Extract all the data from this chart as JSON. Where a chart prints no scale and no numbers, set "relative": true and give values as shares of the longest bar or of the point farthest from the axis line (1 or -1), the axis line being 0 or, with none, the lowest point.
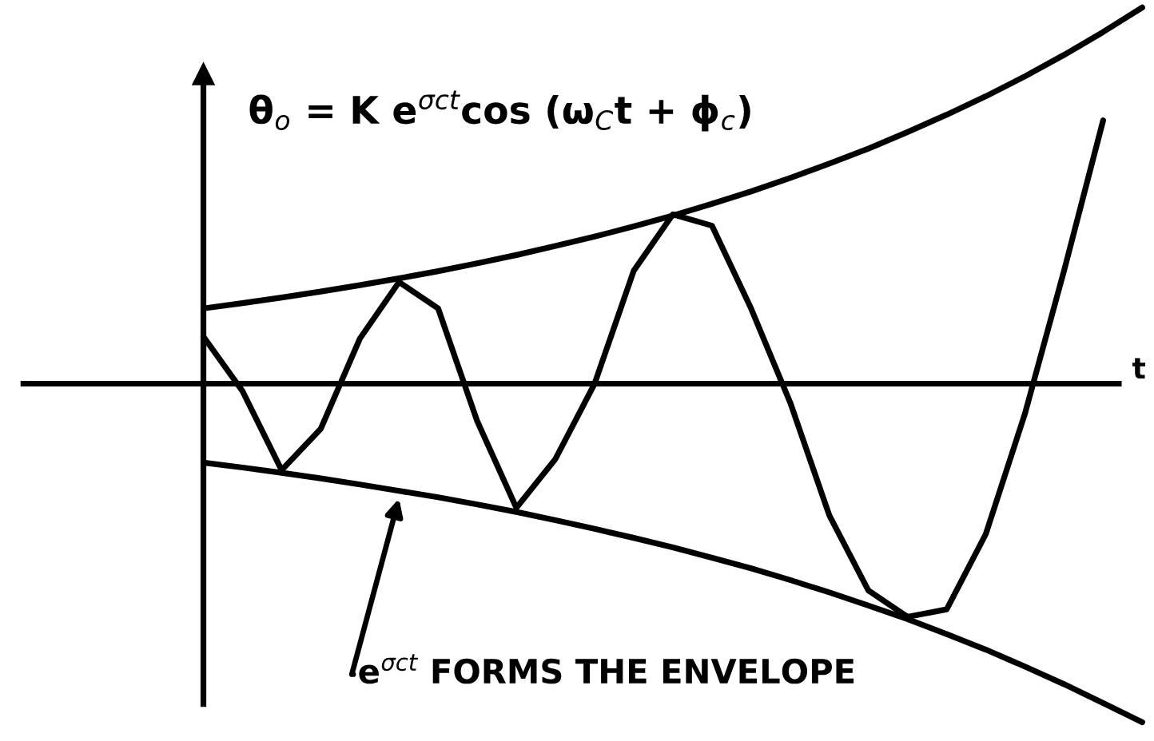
{
  "chart_data": {
    "type": "line",
    "relative": true,
    "xlabel": "t",
    "categories": [
      null,
      null,
      null,
      null,
      null,
      null,
      null,
      null,
      null,
      null,
      null,
      null,
      null,
      null,
      null,
      null,
      null,
      null,
      null,
      null,
      null,
      null,
      null,
      null,
      null
    ],
    "series": [
      {
        "color": "#000000",
        "values": [
          0.2,
          0.214,
          0.229,
          0.245,
          0.262,
          0.28,
          0.299,
          0.32,
          0.342,
          0.366,
          0.391,
          0.418,
          0.447,
          0.478,
          0.511,
          0.547,
          0.585,
          0.625,
          0.669,
          0.715,
          0.764,
          0.817,
          0.874,
          0.935,
          1.0
        ]
      },
      {
        "color": "#000000",
        "values": [
          -0.21,
          -0.223,
          -0.237,
          -0.252,
          -0.268,
          -0.285,
          -0.302,
          -0.321,
          -0.341,
          -0.363,
          -0.386,
          -0.41,
          -0.435,
          -0.463,
          -0.491,
          -0.522,
          -0.555,
          -0.59,
          -0.626,
          -0.666,
          -0.707,
          -0.752,
          -0.799,
          -0.849,
          -0.9
        ]
      },
      {
        "color": "#000000",
        "values": [
          0.125,
          -0.02,
          -0.23,
          -0.12,
          0.12,
          0.27,
          0.2,
          -0.1,
          -0.33,
          -0.2,
          0.0,
          0.3,
          0.45,
          0.42,
          0.2,
          -0.05,
          -0.35,
          -0.55,
          -0.62,
          -0.6,
          -0.4,
          -0.08,
          0.3,
          0.7,
          null
        ]
      }
    ],
    "annotations": [
      "θ$_{o}$ = K e$^{σct}$cos (ω$_{C}$t + ϕ$_{c}$)",
      "e$^{σct}$ FORMS THE ENVELOPE"
    ],
    "marker": "none",
    "line_style": "solid",
    "legend": false
  }
}
